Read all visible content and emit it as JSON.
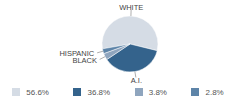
{
  "chart_data": {
    "type": "pie",
    "categories": [
      "WHITE",
      "A.I.",
      "BLACK",
      "HISPANIC"
    ],
    "values": [
      56.6,
      36.8,
      3.8,
      2.8
    ],
    "value_labels": [
      "56.6%",
      "36.8%",
      "3.8%",
      "2.8%"
    ],
    "colors": [
      "#d5dce5",
      "#34638c",
      "#8fa5be",
      "#5d84a8"
    ],
    "legend": "bottom"
  }
}
